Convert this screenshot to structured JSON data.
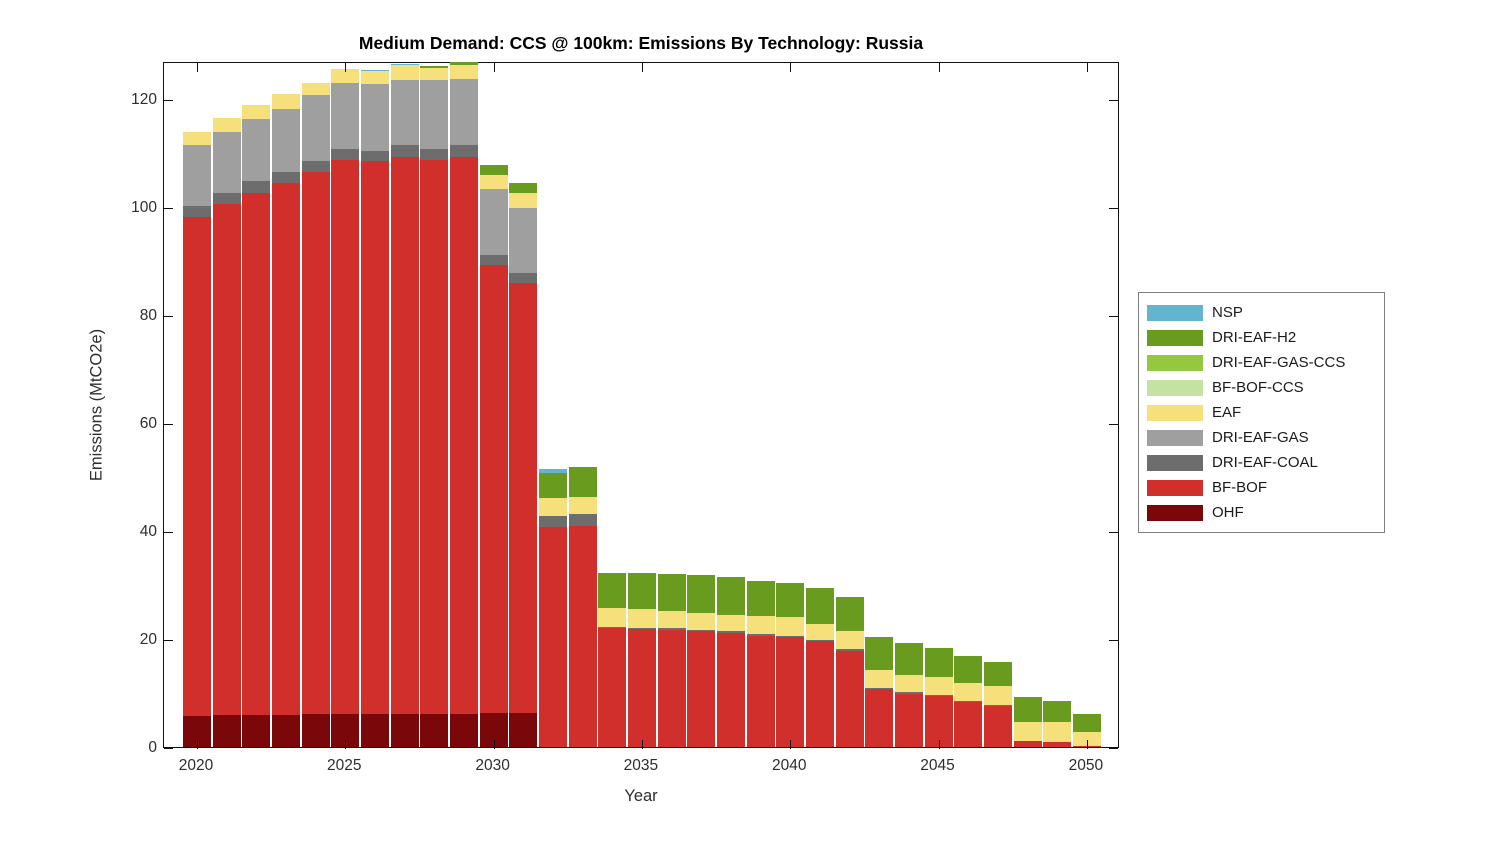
{
  "chart_data": {
    "type": "bar",
    "stacked": true,
    "title": "Medium Demand: CCS @ 100km: Emissions By Technology: Russia",
    "xlabel": "Year",
    "ylabel": "Emissions (MtCO2e)",
    "ylim": [
      0,
      127
    ],
    "yticks": [
      0,
      20,
      40,
      60,
      80,
      100,
      120
    ],
    "xticks": [
      2020,
      2025,
      2030,
      2035,
      2040,
      2045,
      2050
    ],
    "grid": false,
    "legend_position": "right-outside",
    "years": [
      2020,
      2021,
      2022,
      2023,
      2024,
      2025,
      2026,
      2027,
      2028,
      2029,
      2030,
      2031,
      2032,
      2033,
      2034,
      2035,
      2036,
      2037,
      2038,
      2039,
      2040,
      2041,
      2042,
      2043,
      2044,
      2045,
      2046,
      2047,
      2048,
      2049,
      2050
    ],
    "series": [
      {
        "name": "NSP",
        "color": "#62b5cd",
        "values": [
          0,
          0,
          0,
          0,
          0,
          0,
          0.2,
          0.2,
          0,
          0,
          0,
          0,
          0.7,
          0,
          0,
          0,
          0,
          0,
          0,
          0,
          0,
          0,
          0,
          0,
          0,
          0,
          0,
          0,
          0,
          0,
          0
        ]
      },
      {
        "name": "DRI-EAF-H2",
        "color": "#689b1e",
        "values": [
          0,
          0,
          0,
          0,
          0,
          0,
          0,
          0,
          0.4,
          0.5,
          1.9,
          1.9,
          4.6,
          5.6,
          6.6,
          6.6,
          7.0,
          6.9,
          7.0,
          6.5,
          6.3,
          6.6,
          6.3,
          6.1,
          5.8,
          5.4,
          5.0,
          4.4,
          4.6,
          3.9,
          3.4
        ]
      },
      {
        "name": "DRI-EAF-GAS-CCS",
        "color": "#94c83e",
        "values": [
          0,
          0,
          0,
          0,
          0,
          0,
          0,
          0,
          0,
          0,
          0,
          0,
          0,
          0,
          0,
          0,
          0,
          0,
          0,
          0,
          0,
          0,
          0,
          0,
          0,
          0,
          0,
          0,
          0,
          0,
          0
        ]
      },
      {
        "name": "BF-BOF-CCS",
        "color": "#c6e2a3",
        "values": [
          0,
          0,
          0,
          0,
          0,
          0,
          0,
          0,
          0,
          0,
          0,
          0,
          0,
          0,
          0,
          0,
          0,
          0,
          0,
          0,
          0,
          0,
          0,
          0,
          0,
          0,
          0,
          0,
          0,
          0,
          0
        ]
      },
      {
        "name": "EAF",
        "color": "#f5e07b",
        "values": [
          2.3,
          2.6,
          2.7,
          2.8,
          2.3,
          2.6,
          2.5,
          2.8,
          2.2,
          2.6,
          2.6,
          2.7,
          3.3,
          3.2,
          3.4,
          3.5,
          3.1,
          3.2,
          3.0,
          3.4,
          3.4,
          2.9,
          3.3,
          3.3,
          3.3,
          3.3,
          3.3,
          3.5,
          3.6,
          3.6,
          2.5
        ]
      },
      {
        "name": "DRI-EAF-GAS",
        "color": "#9f9f9f",
        "values": [
          11.3,
          11.4,
          11.5,
          11.7,
          12.3,
          12.2,
          12.3,
          12.1,
          12.8,
          12.3,
          12.2,
          12.1,
          0,
          0,
          0,
          0,
          0,
          0,
          0,
          0,
          0,
          0,
          0,
          0,
          0,
          0,
          0,
          0,
          0,
          0,
          0
        ]
      },
      {
        "name": "DRI-EAF-COAL",
        "color": "#6d6d6d",
        "values": [
          2.0,
          2.0,
          2.1,
          2.0,
          2.0,
          2.0,
          2.0,
          2.1,
          2.0,
          2.1,
          1.8,
          1.8,
          2.0,
          2.1,
          0.3,
          0.3,
          0.3,
          0.3,
          0.3,
          0.3,
          0.3,
          0.3,
          0.3,
          0.2,
          0.2,
          0.2,
          0.2,
          0.2,
          0,
          0,
          0
        ]
      },
      {
        "name": "BF-BOF",
        "color": "#d02f2b",
        "values": [
          92.5,
          94.6,
          96.6,
          98.4,
          100.3,
          102.6,
          102.3,
          103.2,
          102.6,
          103.2,
          83.1,
          79.7,
          40.8,
          41.0,
          22.0,
          21.8,
          21.7,
          21.4,
          21.1,
          20.6,
          20.3,
          19.6,
          17.8,
          10.8,
          9.9,
          9.4,
          8.4,
          7.6,
          1.1,
          1.0,
          0.2
        ]
      },
      {
        "name": "OHF",
        "color": "#7a0709",
        "values": [
          5.7,
          5.9,
          6.0,
          6.0,
          6.1,
          6.1,
          6.1,
          6.1,
          6.1,
          6.1,
          6.2,
          6.2,
          0,
          0,
          0,
          0,
          0,
          0,
          0,
          0,
          0,
          0,
          0,
          0,
          0,
          0,
          0,
          0,
          0,
          0,
          0
        ]
      }
    ]
  }
}
